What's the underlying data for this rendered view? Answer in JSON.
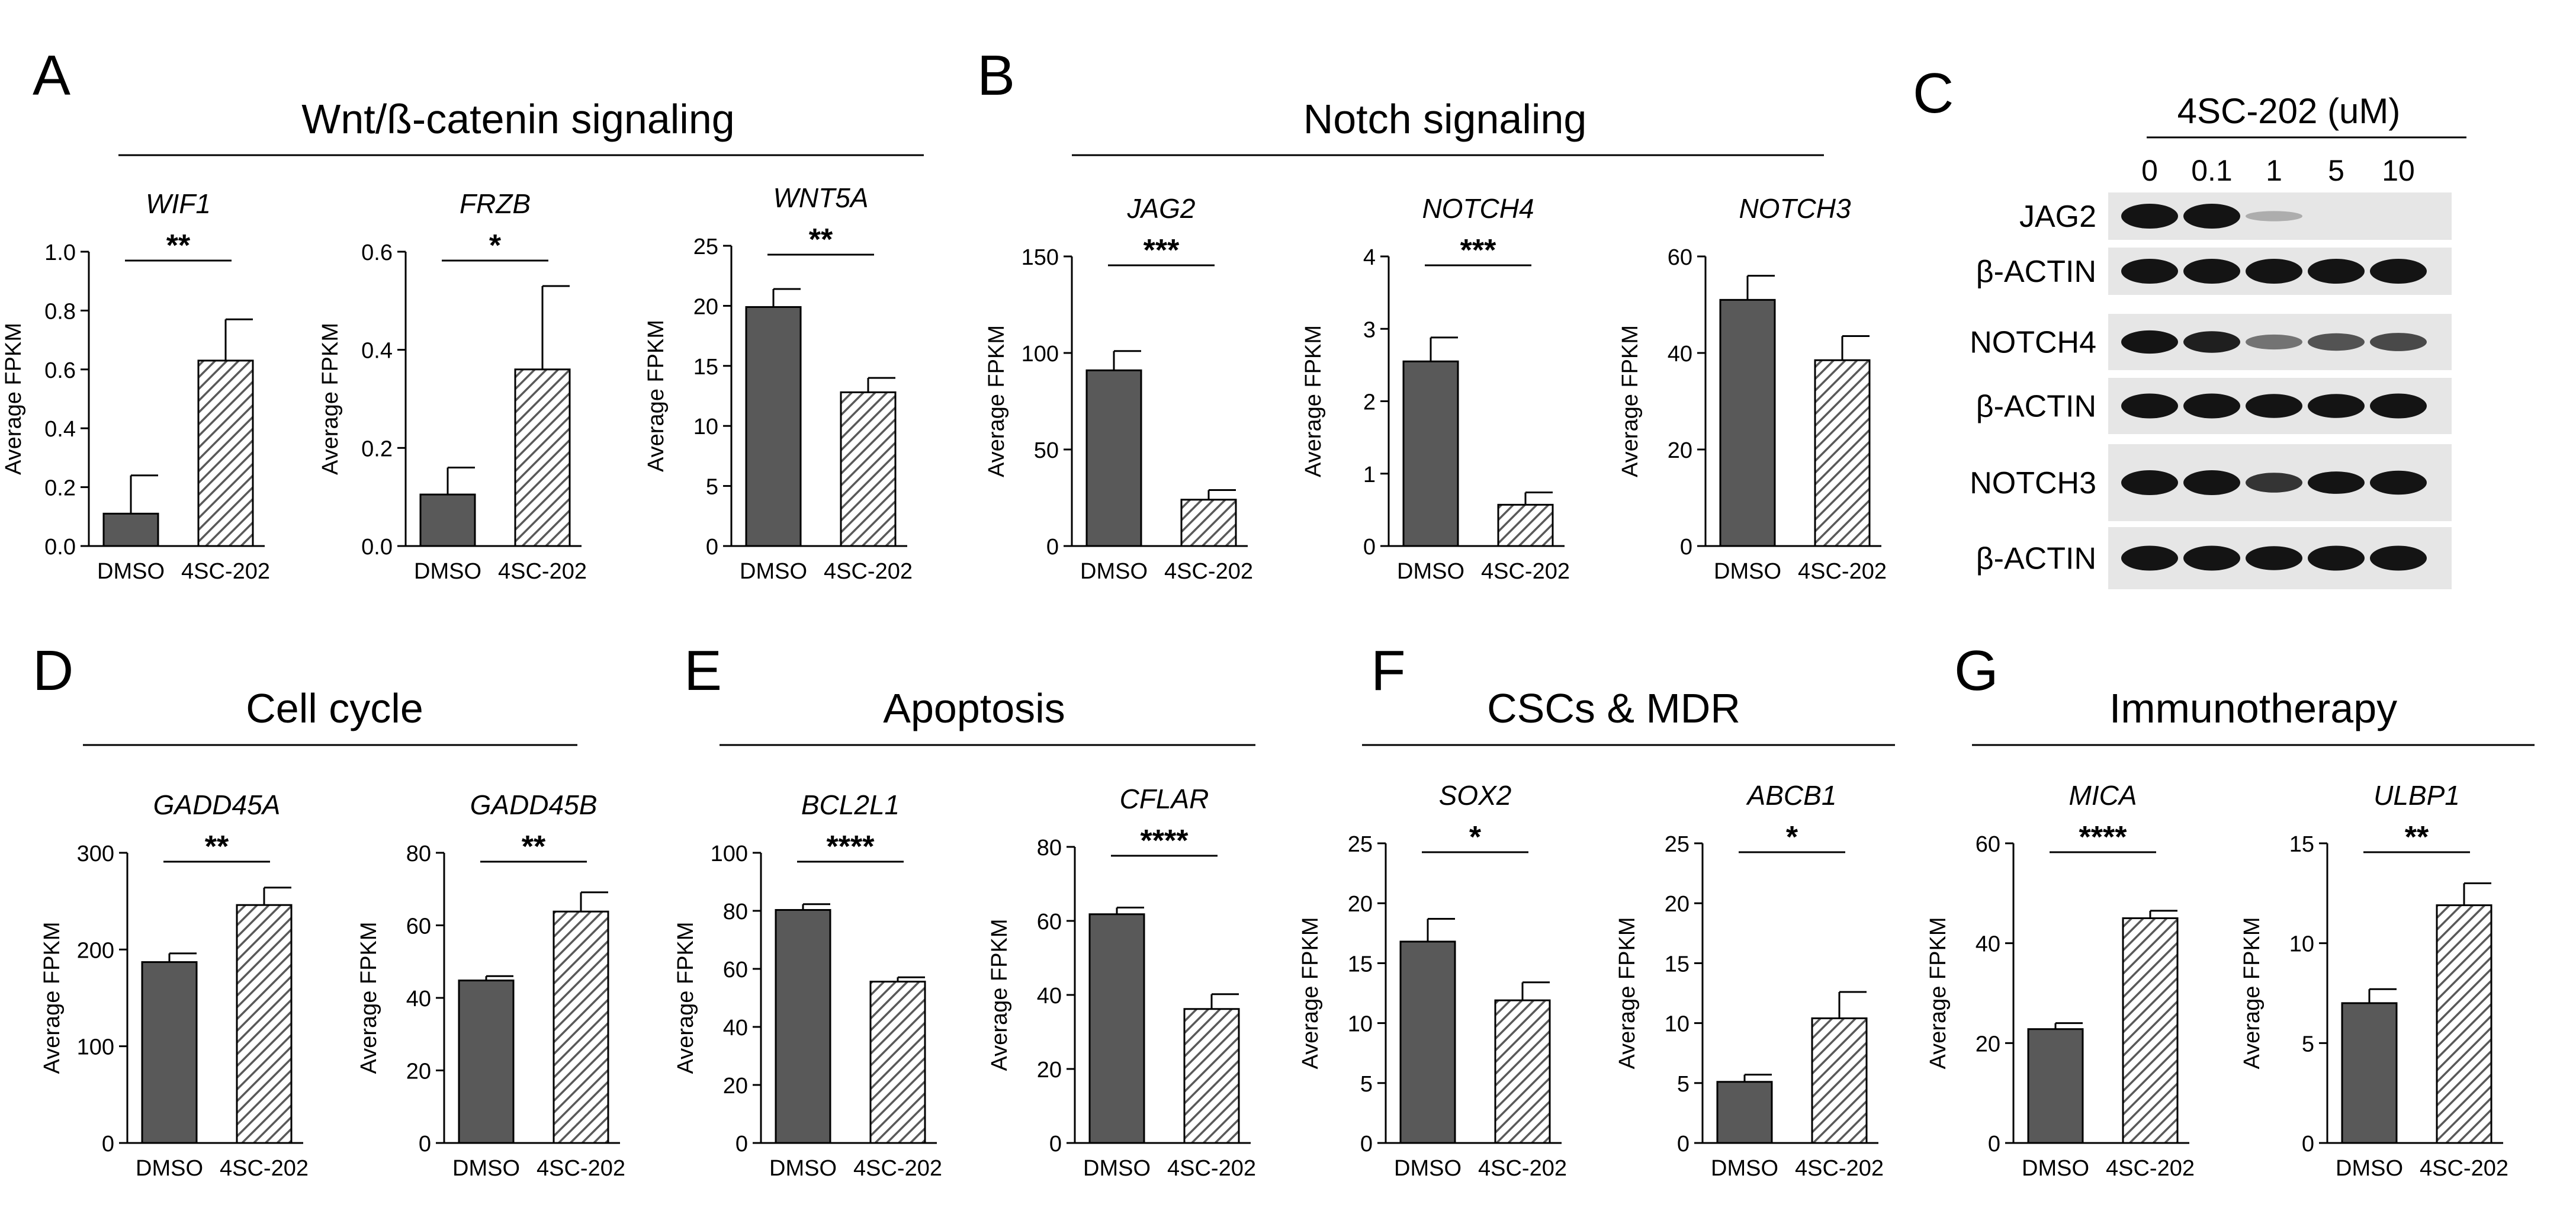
{
  "figure": {
    "x_categories": [
      "DMSO",
      "4SC-202"
    ],
    "y_label": "Average FPKM",
    "colors": {
      "bar_dmso": "#595959",
      "hatch": "#595959",
      "axis": "#000000",
      "blot_bg": "#e6e6e6",
      "band": "#141414"
    }
  },
  "chart_data": [
    {
      "panel": "A",
      "gene": "WIF1",
      "type": "bar",
      "categories": [
        "DMSO",
        "4SC-202"
      ],
      "values": [
        0.11,
        0.63
      ],
      "errors": [
        0.13,
        0.14
      ],
      "ylim": [
        0,
        1.0
      ],
      "yticks": [
        "0.0",
        "0.2",
        "0.4",
        "0.6",
        "0.8",
        "1.0"
      ],
      "significance": "**",
      "ylabel": "Average FPKM"
    },
    {
      "panel": "A",
      "gene": "FRZB",
      "type": "bar",
      "categories": [
        "DMSO",
        "4SC-202"
      ],
      "values": [
        0.105,
        0.36
      ],
      "errors": [
        0.055,
        0.17
      ],
      "ylim": [
        0,
        0.6
      ],
      "yticks": [
        "0.0",
        "0.2",
        "0.4",
        "0.6"
      ],
      "significance": "*",
      "ylabel": "Average FPKM"
    },
    {
      "panel": "A",
      "gene": "WNT5A",
      "type": "bar",
      "categories": [
        "DMSO",
        "4SC-202"
      ],
      "values": [
        19.9,
        12.8
      ],
      "errors": [
        1.5,
        1.2
      ],
      "ylim": [
        0,
        25
      ],
      "yticks": [
        "0",
        "5",
        "10",
        "15",
        "20",
        "25"
      ],
      "significance": "**",
      "ylabel": "Average FPKM"
    },
    {
      "panel": "B",
      "gene": "JAG2",
      "type": "bar",
      "categories": [
        "DMSO",
        "4SC-202"
      ],
      "values": [
        91,
        24
      ],
      "errors": [
        10,
        5
      ],
      "ylim": [
        0,
        150
      ],
      "yticks": [
        "0",
        "50",
        "100",
        "150"
      ],
      "significance": "***",
      "ylabel": "Average FPKM"
    },
    {
      "panel": "B",
      "gene": "NOTCH4",
      "type": "bar",
      "categories": [
        "DMSO",
        "4SC-202"
      ],
      "values": [
        2.55,
        0.57
      ],
      "errors": [
        0.33,
        0.17
      ],
      "ylim": [
        0,
        4
      ],
      "yticks": [
        "0",
        "1",
        "2",
        "3",
        "4"
      ],
      "significance": "***",
      "ylabel": "Average FPKM"
    },
    {
      "panel": "B",
      "gene": "NOTCH3",
      "type": "bar",
      "categories": [
        "DMSO",
        "4SC-202"
      ],
      "values": [
        51,
        38.5
      ],
      "errors": [
        5,
        5
      ],
      "ylim": [
        0,
        60
      ],
      "yticks": [
        "0",
        "20",
        "40",
        "60"
      ],
      "significance": "",
      "ylabel": "Average FPKM"
    },
    {
      "panel": "D",
      "gene": "GADD45A",
      "type": "bar",
      "categories": [
        "DMSO",
        "4SC-202"
      ],
      "values": [
        187,
        246
      ],
      "errors": [
        9,
        18
      ],
      "ylim": [
        0,
        300
      ],
      "yticks": [
        "0",
        "100",
        "200",
        "300"
      ],
      "significance": "**",
      "ylabel": "Average FPKM"
    },
    {
      "panel": "D",
      "gene": "GADD45B",
      "type": "bar",
      "categories": [
        "DMSO",
        "4SC-202"
      ],
      "values": [
        44.8,
        63.8
      ],
      "errors": [
        1.2,
        5.3
      ],
      "ylim": [
        0,
        80
      ],
      "yticks": [
        "0",
        "20",
        "40",
        "60",
        "80"
      ],
      "significance": "**",
      "ylabel": "Average FPKM"
    },
    {
      "panel": "E",
      "gene": "BCL2L1",
      "type": "bar",
      "categories": [
        "DMSO",
        "4SC-202"
      ],
      "values": [
        80.3,
        55.6
      ],
      "errors": [
        2.0,
        1.5
      ],
      "ylim": [
        0,
        100
      ],
      "yticks": [
        "0",
        "20",
        "40",
        "60",
        "80",
        "100"
      ],
      "significance": "****",
      "ylabel": "Average FPKM"
    },
    {
      "panel": "E",
      "gene": "CFLAR",
      "type": "bar",
      "categories": [
        "DMSO",
        "4SC-202"
      ],
      "values": [
        61.8,
        36.2
      ],
      "errors": [
        1.8,
        4.0
      ],
      "ylim": [
        0,
        80
      ],
      "yticks": [
        "0",
        "20",
        "40",
        "60",
        "80"
      ],
      "significance": "****",
      "ylabel": "Average FPKM"
    },
    {
      "panel": "F",
      "gene": "SOX2",
      "type": "bar",
      "categories": [
        "DMSO",
        "4SC-202"
      ],
      "values": [
        16.8,
        11.9
      ],
      "errors": [
        1.9,
        1.5
      ],
      "ylim": [
        0,
        25
      ],
      "yticks": [
        "0",
        "5",
        "10",
        "15",
        "20",
        "25"
      ],
      "significance": "*",
      "ylabel": "Average FPKM"
    },
    {
      "panel": "F",
      "gene": "ABCB1",
      "type": "bar",
      "categories": [
        "DMSO",
        "4SC-202"
      ],
      "values": [
        5.1,
        10.4
      ],
      "errors": [
        0.6,
        2.2
      ],
      "ylim": [
        0,
        25
      ],
      "yticks": [
        "0",
        "5",
        "10",
        "15",
        "20",
        "25"
      ],
      "significance": "*",
      "ylabel": "Average FPKM"
    },
    {
      "panel": "G",
      "gene": "MICA",
      "type": "bar",
      "categories": [
        "DMSO",
        "4SC-202"
      ],
      "values": [
        22.8,
        45.0
      ],
      "errors": [
        1.2,
        1.5
      ],
      "ylim": [
        0,
        60
      ],
      "yticks": [
        "0",
        "20",
        "40",
        "60"
      ],
      "significance": "****",
      "ylabel": "Average FPKM"
    },
    {
      "panel": "G",
      "gene": "ULBP1",
      "type": "bar",
      "categories": [
        "DMSO",
        "4SC-202"
      ],
      "values": [
        7.0,
        11.9
      ],
      "errors": [
        0.7,
        1.1
      ],
      "ylim": [
        0,
        15
      ],
      "yticks": [
        "0",
        "5",
        "10",
        "15"
      ],
      "significance": "**",
      "ylabel": "Average FPKM"
    }
  ],
  "panel_headers": [
    {
      "letter": "A",
      "title": "Wnt/ß-catenin signaling"
    },
    {
      "letter": "B",
      "title": "Notch signaling"
    },
    {
      "letter": "C",
      "title": ""
    },
    {
      "letter": "D",
      "title": "Cell cycle"
    },
    {
      "letter": "E",
      "title": "Apoptosis"
    },
    {
      "letter": "F",
      "title": "CSCs & MDR"
    },
    {
      "letter": "G",
      "title": "Immunotherapy"
    }
  ],
  "western_blot": {
    "title": "4SC-202 (uM)",
    "concentrations": [
      "0",
      "0.1",
      "1",
      "5",
      "10"
    ],
    "rows": [
      {
        "label": "JAG2",
        "intensities": [
          1.0,
          1.0,
          0.12,
          0,
          0
        ]
      },
      {
        "label": "β-ACTIN",
        "intensities": [
          1.0,
          1.0,
          1.0,
          1.0,
          1.0
        ]
      },
      {
        "label": "NOTCH4",
        "intensities": [
          0.9,
          0.8,
          0.4,
          0.55,
          0.6
        ]
      },
      {
        "label": "β-ACTIN",
        "intensities": [
          1.0,
          1.0,
          0.95,
          0.95,
          1.0
        ]
      },
      {
        "label": "NOTCH3",
        "intensities": [
          1.0,
          1.0,
          0.7,
          0.85,
          0.95
        ]
      },
      {
        "label": "β-ACTIN",
        "intensities": [
          1.0,
          1.0,
          0.95,
          1.0,
          1.0
        ]
      }
    ]
  }
}
